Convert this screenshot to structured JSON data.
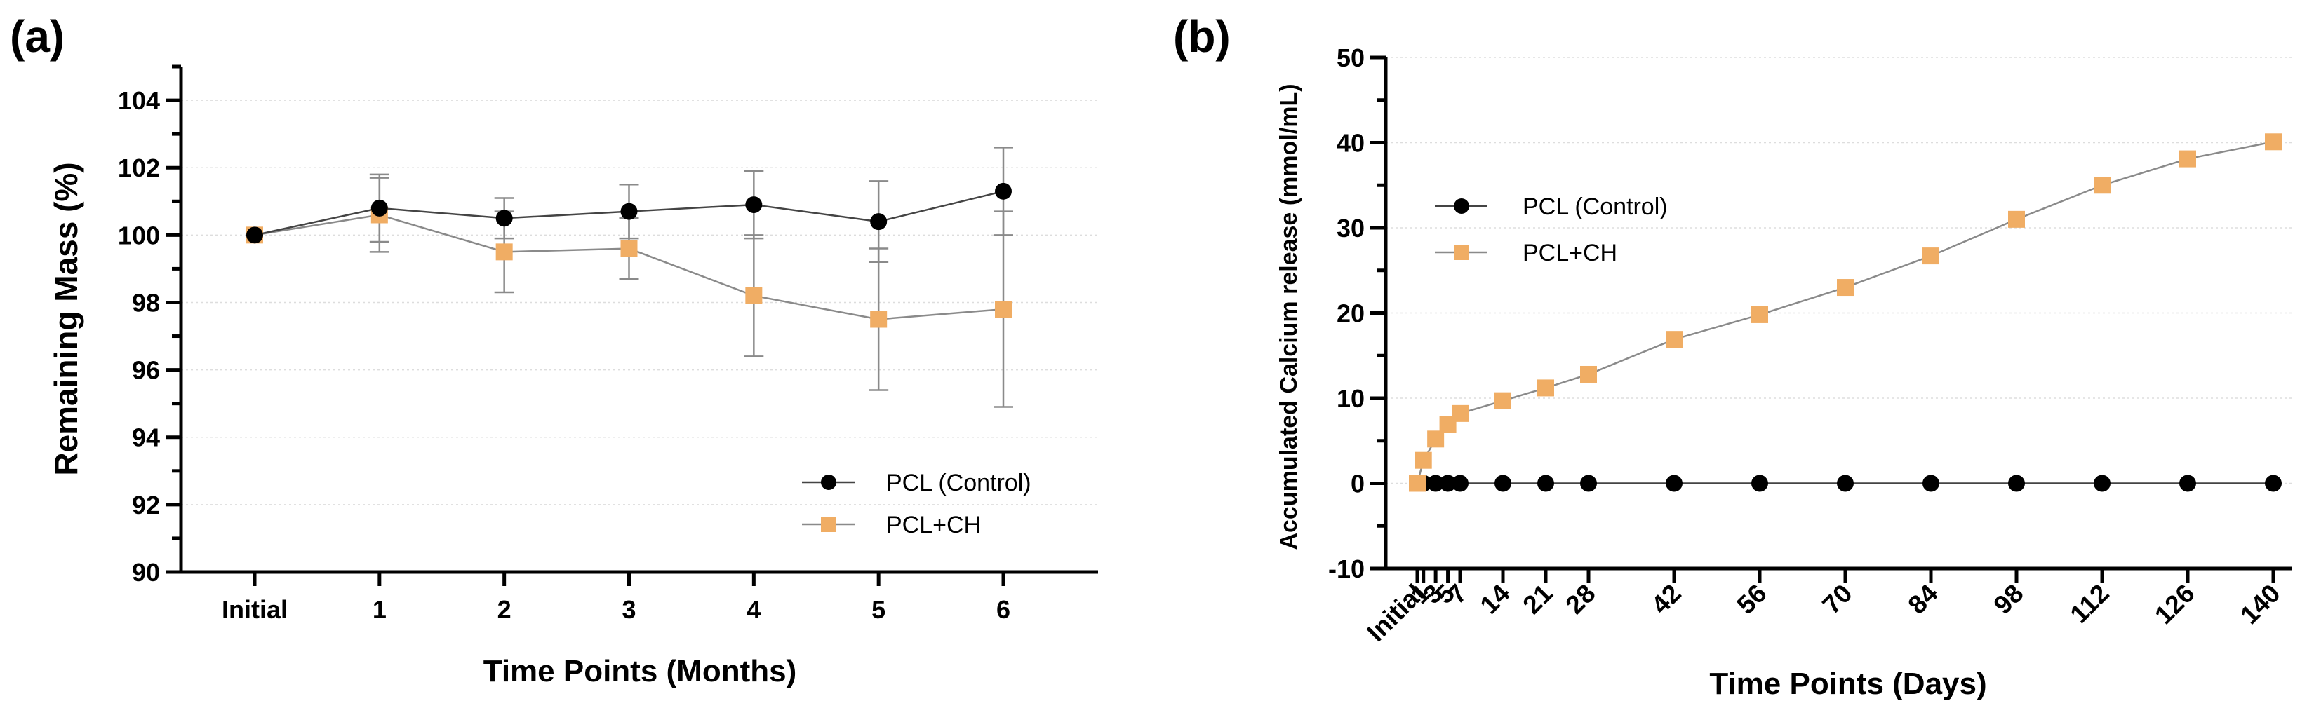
{
  "chart_data": [
    {
      "panel_label": "(a)",
      "type": "line",
      "xlabel": "Time Points (Months)",
      "ylabel": "Remaining Mass  (%)",
      "categories": [
        "Initial",
        "1",
        "2",
        "3",
        "4",
        "5",
        "6"
      ],
      "ylim": [
        90,
        105
      ],
      "yticks": [
        90,
        92,
        94,
        96,
        98,
        100,
        102,
        104
      ],
      "grid": true,
      "legend_position": "bottom-right",
      "series": [
        {
          "name": "PCL (Control)",
          "marker": "circle",
          "color": "#000000",
          "line_color": "#444444",
          "values": [
            100.0,
            100.8,
            100.5,
            100.7,
            100.9,
            100.4,
            101.3
          ],
          "errors": [
            0.0,
            1.0,
            0.6,
            0.8,
            1.0,
            1.2,
            1.3
          ]
        },
        {
          "name": "PCL+CH",
          "marker": "square",
          "color": "#f0ad64",
          "line_color": "#8a8a8a",
          "values": [
            100.0,
            100.6,
            99.5,
            99.6,
            98.2,
            97.5,
            97.8
          ],
          "errors": [
            0.0,
            1.1,
            1.2,
            0.9,
            1.8,
            2.1,
            2.9
          ]
        }
      ]
    },
    {
      "panel_label": "(b)",
      "type": "line",
      "xlabel": "Time Points (Days)",
      "ylabel": "Accumulated Calcium release (mmol/mL)",
      "x": [
        0,
        1,
        3,
        5,
        7,
        14,
        21,
        28,
        42,
        56,
        70,
        84,
        98,
        112,
        126,
        140
      ],
      "x_tick_labels": [
        "Initial",
        "1",
        "3",
        "5",
        "7",
        "14",
        "21",
        "28",
        "42",
        "56",
        "70",
        "84",
        "98",
        "112",
        "126",
        "140"
      ],
      "ylim": [
        -10,
        50
      ],
      "yticks": [
        -10,
        0,
        10,
        20,
        30,
        40,
        50
      ],
      "grid": true,
      "legend_position": "top-left",
      "series": [
        {
          "name": "PCL (Control)",
          "marker": "circle",
          "color": "#000000",
          "line_color": "#444444",
          "values": [
            0,
            0,
            0,
            0,
            0,
            0,
            0,
            0,
            0,
            0,
            0,
            0,
            0,
            0,
            0,
            0
          ]
        },
        {
          "name": "PCL+CH",
          "marker": "square",
          "color": "#f0ad64",
          "line_color": "#8a8a8a",
          "values": [
            0,
            2.7,
            5.2,
            6.9,
            8.2,
            9.7,
            11.2,
            12.8,
            16.9,
            19.8,
            23.0,
            26.7,
            31.0,
            35.0,
            38.1,
            40.1
          ]
        }
      ]
    }
  ]
}
